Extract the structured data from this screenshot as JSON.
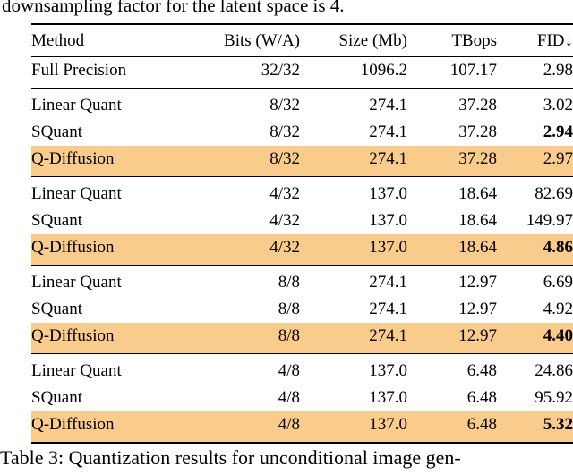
{
  "intro_text": "downsampling factor for the latent space is 4.",
  "caption": "Table 3: Quantization results for unconditional image gen-",
  "highlight_color": "#FACC8C",
  "table": {
    "headers": [
      "Method",
      "Bits (W/A)",
      "Size (Mb)",
      "TBops",
      "FID↓"
    ],
    "groups": [
      {
        "rows": [
          {
            "method": "Full Precision",
            "bits": "32/32",
            "size": "1096.2",
            "tbops": "107.17",
            "fid": "2.98",
            "highlight": false,
            "fid_bold": false
          }
        ]
      },
      {
        "rows": [
          {
            "method": "Linear Quant",
            "bits": "8/32",
            "size": "274.1",
            "tbops": "37.28",
            "fid": "3.02",
            "highlight": false,
            "fid_bold": false
          },
          {
            "method": "SQuant",
            "bits": "8/32",
            "size": "274.1",
            "tbops": "37.28",
            "fid": "2.94",
            "highlight": false,
            "fid_bold": true
          },
          {
            "method": "Q-Diffusion",
            "bits": "8/32",
            "size": "274.1",
            "tbops": "37.28",
            "fid": "2.97",
            "highlight": true,
            "fid_bold": false
          }
        ]
      },
      {
        "rows": [
          {
            "method": "Linear Quant",
            "bits": "4/32",
            "size": "137.0",
            "tbops": "18.64",
            "fid": "82.69",
            "highlight": false,
            "fid_bold": false
          },
          {
            "method": "SQuant",
            "bits": "4/32",
            "size": "137.0",
            "tbops": "18.64",
            "fid": "149.97",
            "highlight": false,
            "fid_bold": false
          },
          {
            "method": "Q-Diffusion",
            "bits": "4/32",
            "size": "137.0",
            "tbops": "18.64",
            "fid": "4.86",
            "highlight": true,
            "fid_bold": true
          }
        ]
      },
      {
        "rows": [
          {
            "method": "Linear Quant",
            "bits": "8/8",
            "size": "274.1",
            "tbops": "12.97",
            "fid": "6.69",
            "highlight": false,
            "fid_bold": false
          },
          {
            "method": "SQuant",
            "bits": "8/8",
            "size": "274.1",
            "tbops": "12.97",
            "fid": "4.92",
            "highlight": false,
            "fid_bold": false
          },
          {
            "method": "Q-Diffusion",
            "bits": "8/8",
            "size": "274.1",
            "tbops": "12.97",
            "fid": "4.40",
            "highlight": true,
            "fid_bold": true
          }
        ]
      },
      {
        "rows": [
          {
            "method": "Linear Quant",
            "bits": "4/8",
            "size": "137.0",
            "tbops": "6.48",
            "fid": "24.86",
            "highlight": false,
            "fid_bold": false
          },
          {
            "method": "SQuant",
            "bits": "4/8",
            "size": "137.0",
            "tbops": "6.48",
            "fid": "95.92",
            "highlight": false,
            "fid_bold": false
          },
          {
            "method": "Q-Diffusion",
            "bits": "4/8",
            "size": "137.0",
            "tbops": "6.48",
            "fid": "5.32",
            "highlight": true,
            "fid_bold": true
          }
        ]
      }
    ]
  }
}
